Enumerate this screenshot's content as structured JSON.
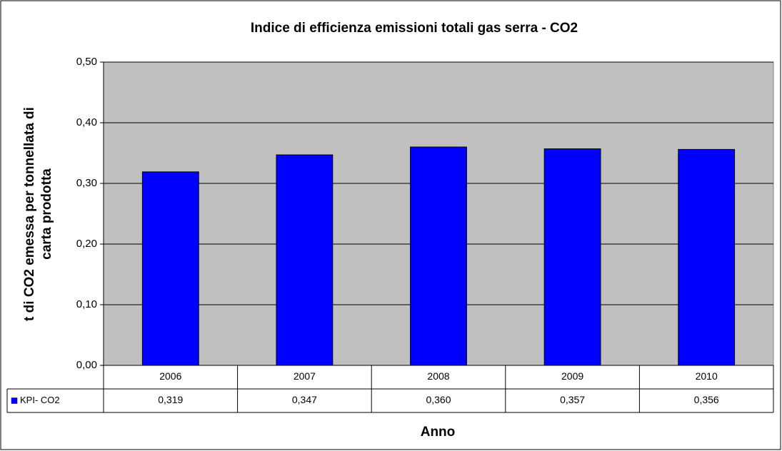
{
  "chart_data": {
    "type": "bar",
    "title": "Indice di efficienza emissioni totali gas serra - CO2",
    "x_label": "Anno",
    "y_label": [
      "t di CO2 emessa per tonnellata di",
      "carta prodotta"
    ],
    "categories": [
      "2006",
      "2007",
      "2008",
      "2009",
      "2010"
    ],
    "series": [
      {
        "name": "KPI- CO2",
        "color": "#0000ff",
        "values": [
          0.319,
          0.347,
          0.36,
          0.357,
          0.356
        ],
        "value_labels": [
          "0,319",
          "0,347",
          "0,360",
          "0,357",
          "0,356"
        ]
      }
    ],
    "ylim": [
      0,
      0.5
    ],
    "yticks": [
      {
        "value": 0,
        "label": "0,00"
      },
      {
        "value": 0.1,
        "label": "0,10"
      },
      {
        "value": 0.2,
        "label": "0,20"
      },
      {
        "value": 0.3,
        "label": "0,30"
      },
      {
        "value": 0.4,
        "label": "0,40"
      },
      {
        "value": 0.5,
        "label": "0,50"
      }
    ],
    "grid": true,
    "data_table": true
  }
}
